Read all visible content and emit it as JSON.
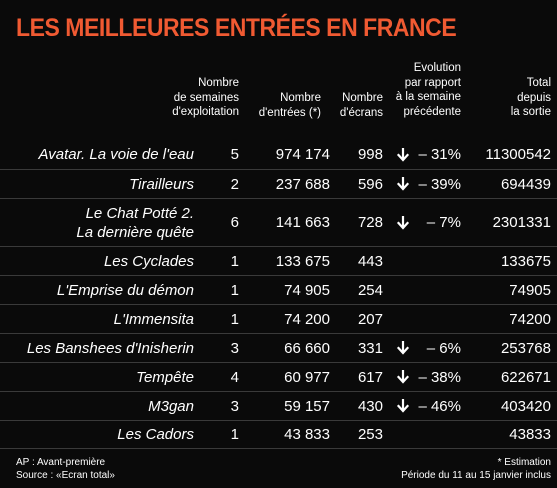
{
  "title": "LES MEILLEURES ENTRÉES EN FRANCE",
  "columns": {
    "weeks": "Nombre\nde semaines\nd'exploitation",
    "entries": "Nombre\nd'entrées (*)",
    "screens": "Nombre\nd'écrans",
    "evolution": "Evolution\npar rapport\nà la semaine\nprécédente",
    "total": "Total\ndepuis\nla sortie"
  },
  "rows": [
    {
      "title": "Avatar. La voie de l'eau",
      "weeks": "5",
      "entries": "974 174",
      "screens": "998",
      "arrow": "down-arrow-icon",
      "evolution": "– 31%",
      "total": "11300542"
    },
    {
      "title": "Tirailleurs",
      "weeks": "2",
      "entries": "237 688",
      "screens": "596",
      "arrow": "down-arrow-icon",
      "evolution": "– 39%",
      "total": "694439"
    },
    {
      "title": "Le Chat Potté 2.\nLa dernière quête",
      "weeks": "6",
      "entries": "141 663",
      "screens": "728",
      "arrow": "down-arrow-icon",
      "evolution": "– 7%",
      "total": "2301331"
    },
    {
      "title": "Les Cyclades",
      "weeks": "1",
      "entries": "133 675",
      "screens": "443",
      "arrow": "",
      "evolution": "",
      "total": "133675"
    },
    {
      "title": "L'Emprise du démon",
      "weeks": "1",
      "entries": "74 905",
      "screens": "254",
      "arrow": "",
      "evolution": "",
      "total": "74905"
    },
    {
      "title": "L'Immensita",
      "weeks": "1",
      "entries": "74 200",
      "screens": "207",
      "arrow": "",
      "evolution": "",
      "total": "74200"
    },
    {
      "title": "Les Banshees d'Inisherin",
      "weeks": "3",
      "entries": "66 660",
      "screens": "331",
      "arrow": "down-arrow-icon",
      "evolution": "– 6%",
      "total": "253768"
    },
    {
      "title": "Tempête",
      "weeks": "4",
      "entries": "60 977",
      "screens": "617",
      "arrow": "down-arrow-icon",
      "evolution": "– 38%",
      "total": "622671"
    },
    {
      "title": "M3gan",
      "weeks": "3",
      "entries": "59 157",
      "screens": "430",
      "arrow": "down-arrow-icon",
      "evolution": "– 46%",
      "total": "403420"
    },
    {
      "title": "Les Cadors",
      "weeks": "1",
      "entries": "43 833",
      "screens": "253",
      "arrow": "",
      "evolution": "",
      "total": "43833"
    }
  ],
  "footer": {
    "left_1": "AP : Avant-première",
    "left_2": "Source : «Ecran total»",
    "right_1": "* Estimation",
    "right_2": "Période du 11 au 15 janvier inclus"
  },
  "colors": {
    "title": "#f05a32",
    "background": "#0a0a0a",
    "text": "#ffffff"
  }
}
